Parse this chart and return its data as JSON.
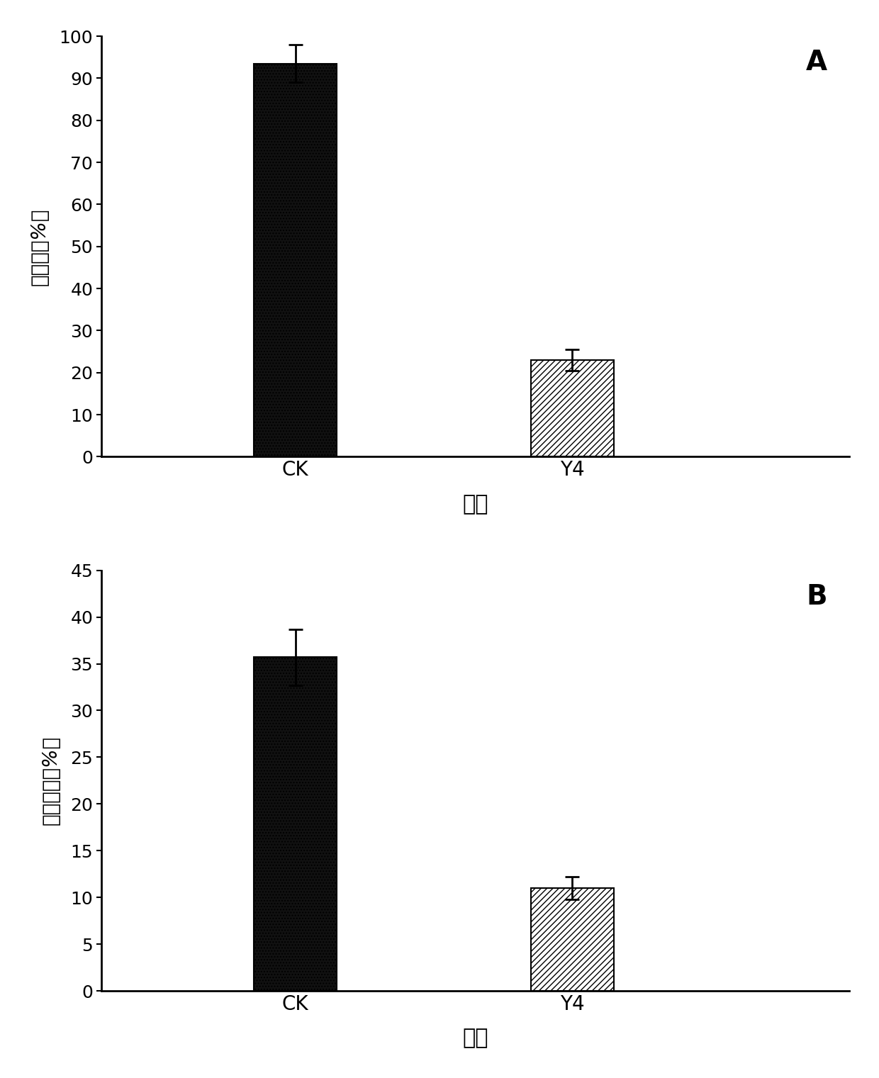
{
  "panel_A": {
    "categories": [
      "CK",
      "Y4"
    ],
    "values": [
      93.5,
      23.0
    ],
    "errors": [
      4.5,
      2.5
    ],
    "ylabel": "腐烂率（%）",
    "xlabel": "处理",
    "ylim": [
      0,
      100
    ],
    "yticks": [
      0,
      10,
      20,
      30,
      40,
      50,
      60,
      70,
      80,
      90,
      100
    ],
    "label": "A"
  },
  "panel_B": {
    "categories": [
      "CK",
      "Y4"
    ],
    "values": [
      35.7,
      11.0
    ],
    "errors": [
      3.0,
      1.2
    ],
    "ylabel": "腐烂直径（%）",
    "xlabel": "处理",
    "ylim": [
      0,
      45
    ],
    "yticks": [
      0,
      5,
      10,
      15,
      20,
      25,
      30,
      35,
      40,
      45
    ],
    "label": "B"
  },
  "background_color": "#ffffff",
  "bar_width": 0.3,
  "x_positions": [
    1,
    2
  ],
  "xlim": [
    0.3,
    3.0
  ],
  "xlabel_fontsize": 22,
  "ylabel_fontsize": 20,
  "tick_fontsize": 18,
  "label_fontsize": 28,
  "ck_bar_color": "#111111",
  "y4_bar_color": "#ffffff",
  "hatch_ck": "....",
  "hatch_y4": "////"
}
